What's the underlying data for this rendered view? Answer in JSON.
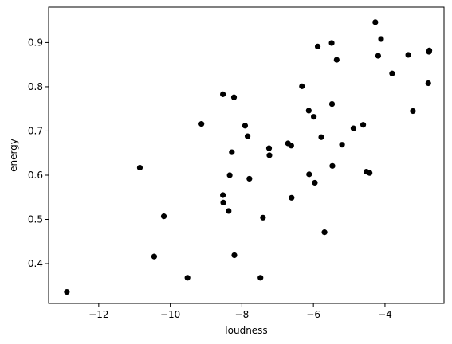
{
  "chart_data": {
    "type": "scatter",
    "title": "",
    "xlabel": "loudness",
    "ylabel": "energy",
    "xlim": [
      -13.4,
      -2.35
    ],
    "ylim": [
      0.31,
      0.98
    ],
    "xticks": [
      -12,
      -10,
      -8,
      -6,
      -4
    ],
    "xtick_labels": [
      "−12",
      "−10",
      "−8",
      "−6",
      "−4"
    ],
    "yticks": [
      0.4,
      0.5,
      0.6,
      0.7,
      0.8,
      0.9
    ],
    "ytick_labels": [
      "0.4",
      "0.5",
      "0.6",
      "0.7",
      "0.8",
      "0.9"
    ],
    "grid": false,
    "marker_color": "#000000",
    "x": [
      -12.89,
      -10.85,
      -10.45,
      -10.18,
      -9.52,
      -9.13,
      -8.53,
      -8.53,
      -8.52,
      -8.37,
      -8.34,
      -8.28,
      -8.22,
      -8.21,
      -7.91,
      -7.84,
      -7.79,
      -7.41,
      -7.48,
      -7.24,
      -7.23,
      -6.71,
      -6.62,
      -6.61,
      -6.32,
      -6.13,
      -6.12,
      -5.99,
      -5.96,
      -5.88,
      -5.78,
      -5.69,
      -5.49,
      -5.48,
      -5.47,
      -5.35,
      -5.2,
      -4.88,
      -4.61,
      -4.52,
      -4.43,
      -4.27,
      -4.19,
      -4.11,
      -3.8,
      -3.35,
      -3.22,
      -2.79,
      -2.77,
      -2.76
    ],
    "y": [
      0.336,
      0.617,
      0.416,
      0.507,
      0.368,
      0.716,
      0.783,
      0.555,
      0.538,
      0.519,
      0.6,
      0.652,
      0.776,
      0.419,
      0.712,
      0.688,
      0.592,
      0.504,
      0.368,
      0.661,
      0.645,
      0.672,
      0.667,
      0.549,
      0.801,
      0.746,
      0.602,
      0.732,
      0.583,
      0.891,
      0.686,
      0.471,
      0.899,
      0.761,
      0.621,
      0.861,
      0.669,
      0.706,
      0.714,
      0.608,
      0.605,
      0.946,
      0.87,
      0.908,
      0.83,
      0.872,
      0.745,
      0.808,
      0.879,
      0.882
    ]
  }
}
